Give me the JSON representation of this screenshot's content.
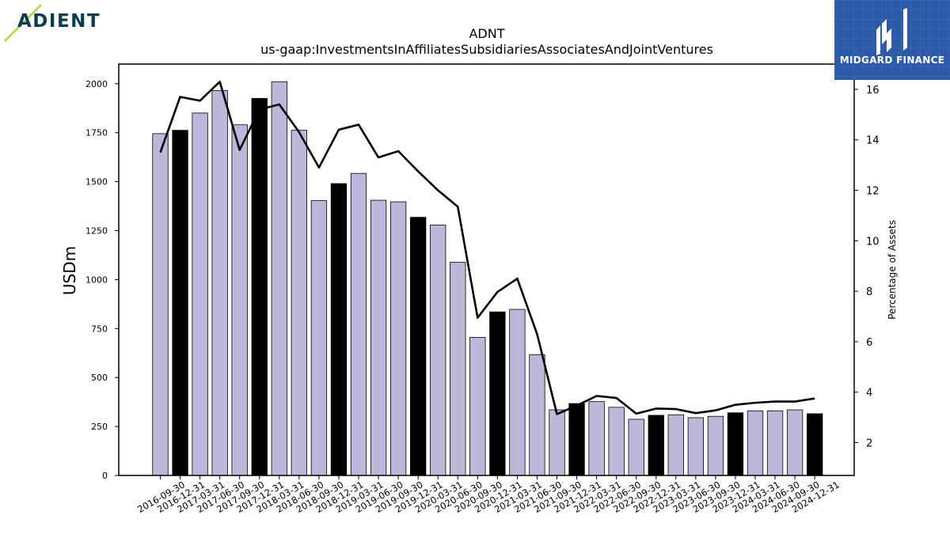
{
  "logos": {
    "left_text": "ADIENT",
    "right_text": "MIDGARD FINANCE"
  },
  "colors": {
    "bar_light": "#bdb8d9",
    "bar_dark": "#000000",
    "line": "#000000",
    "logo_left_accent": "#b5d334",
    "logo_left_text": "#0b3d4f",
    "logo_right_bg": "#2d5aa8"
  },
  "chart_data": {
    "type": "bar",
    "title": "ADNT",
    "subtitle": "us-gaap:InvestmentsInAffiliatesSubsidiariesAssociatesAndJointVentures",
    "ylabel": "USDm",
    "y2label": "Percentage of Assets",
    "ylim": [
      0,
      2100
    ],
    "y2lim": [
      0.7,
      17
    ],
    "yticks": [
      0,
      250,
      500,
      750,
      1000,
      1250,
      1500,
      1750,
      2000
    ],
    "y2ticks": [
      2,
      4,
      6,
      8,
      10,
      12,
      14,
      16
    ],
    "categories": [
      "2016-09-30",
      "2016-12-31",
      "2017-03-31",
      "2017-06-30",
      "2017-09-30",
      "2017-12-31",
      "2018-03-31",
      "2018-06-30",
      "2018-09-30",
      "2018-12-31",
      "2019-03-31",
      "2019-06-30",
      "2019-09-30",
      "2019-12-31",
      "2020-03-31",
      "2020-06-30",
      "2020-09-30",
      "2020-12-31",
      "2021-03-31",
      "2021-06-30",
      "2021-09-30",
      "2021-12-31",
      "2022-03-31",
      "2022-06-30",
      "2022-09-30",
      "2022-12-31",
      "2023-03-31",
      "2023-06-30",
      "2023-09-30",
      "2023-12-31",
      "2024-03-31",
      "2024-06-30",
      "2024-09-30",
      "2024-12-31"
    ],
    "series": [
      {
        "type": "bar",
        "values": [
          1745,
          1762,
          1850,
          1965,
          1790,
          1925,
          2010,
          1762,
          1403,
          1490,
          1542,
          1405,
          1397,
          1318,
          1278,
          1088,
          705,
          835,
          848,
          617,
          335,
          367,
          377,
          348,
          287,
          307,
          310,
          295,
          302,
          320,
          330,
          330,
          335,
          315
        ],
        "highlight": [
          false,
          true,
          false,
          false,
          false,
          true,
          false,
          false,
          false,
          true,
          false,
          false,
          false,
          true,
          false,
          false,
          false,
          true,
          false,
          false,
          false,
          true,
          false,
          false,
          false,
          true,
          false,
          false,
          false,
          true,
          false,
          false,
          false,
          true
        ]
      },
      {
        "type": "line",
        "axis": "right",
        "values": [
          13.5,
          15.7,
          15.55,
          16.3,
          13.6,
          15.2,
          15.4,
          14.3,
          12.9,
          14.4,
          14.6,
          13.3,
          13.55,
          12.75,
          12.0,
          11.35,
          6.95,
          7.97,
          8.5,
          6.3,
          3.13,
          3.47,
          3.85,
          3.77,
          3.15,
          3.35,
          3.33,
          3.17,
          3.28,
          3.5,
          3.58,
          3.63,
          3.63,
          3.75
        ]
      }
    ],
    "grid": false
  }
}
